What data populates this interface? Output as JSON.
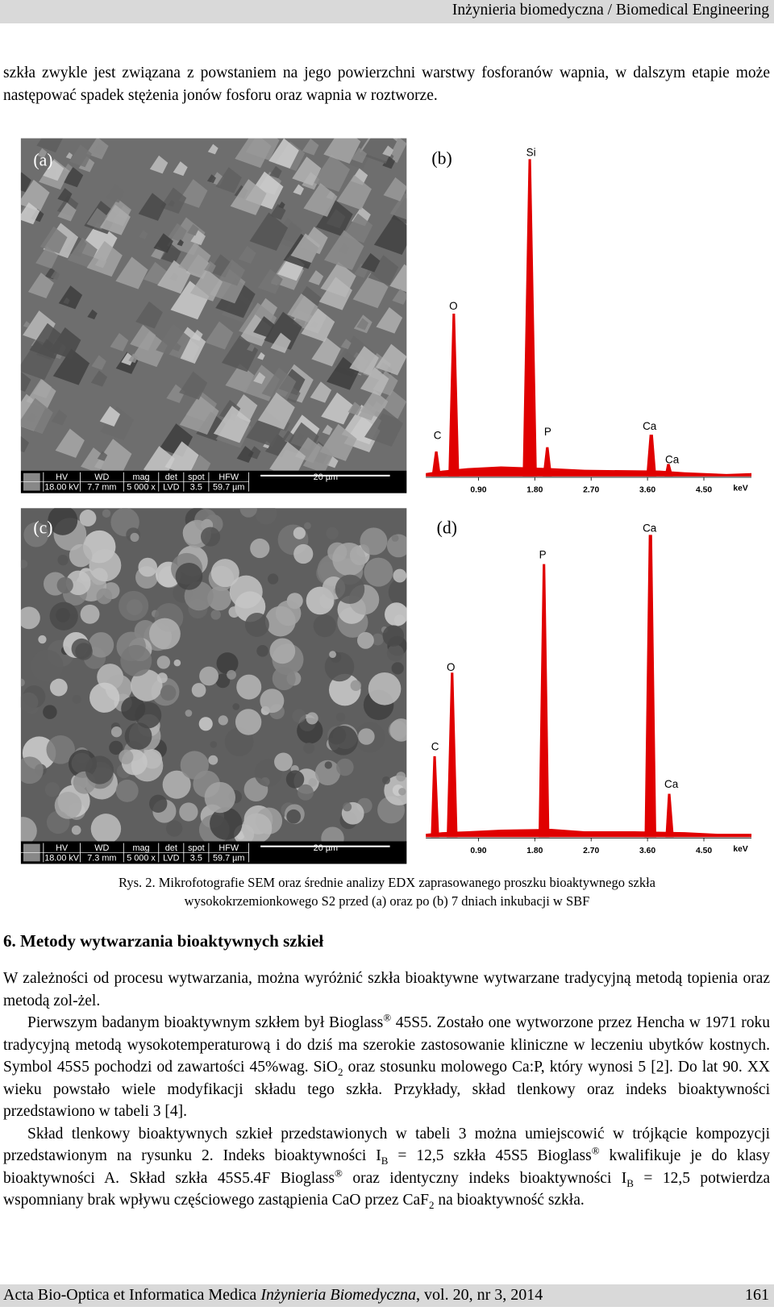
{
  "header": {
    "title": "Inżynieria biomedyczna / Biomedical Engineering"
  },
  "intro": "szkła zwykle jest związana z powstaniem na jego powierzchni warstwy fosforanów wapnia, w dalszym etapie może następować spadek stężenia jonów fosforu oraz wapnia w roztworze.",
  "figure": {
    "panels": [
      {
        "label": "(a)",
        "info": {
          "fields": [
            {
              "name": "HV",
              "value": "18.00 kV"
            },
            {
              "name": "WD",
              "value": "7.7 mm"
            },
            {
              "name": "mag",
              "value": "5 000 x"
            },
            {
              "name": "det",
              "value": "LVD"
            },
            {
              "name": "spot",
              "value": "3.5"
            },
            {
              "name": "HFW",
              "value": "59.7 µm"
            }
          ],
          "scale": "20 µm"
        }
      },
      {
        "label": "(b)",
        "peaks": [
          "Si",
          "O",
          "C",
          "P",
          "Ca",
          "Ca"
        ],
        "xticks": [
          "0.90",
          "1.80",
          "2.70",
          "3.60",
          "4.50"
        ],
        "unit": "keV"
      },
      {
        "label": "(c)",
        "info": {
          "fields": [
            {
              "name": "HV",
              "value": "18.00 kV"
            },
            {
              "name": "WD",
              "value": "7.3 mm"
            },
            {
              "name": "mag",
              "value": "5 000 x"
            },
            {
              "name": "det",
              "value": "LVD"
            },
            {
              "name": "spot",
              "value": "3.5"
            },
            {
              "name": "HFW",
              "value": "59.7 µm"
            }
          ],
          "scale": "20 µm"
        }
      },
      {
        "label": "(d)",
        "peaks": [
          "Ca",
          "P",
          "O",
          "C",
          "Ca"
        ],
        "xticks": [
          "0.90",
          "1.80",
          "2.70",
          "3.60",
          "4.50"
        ],
        "unit": "keV"
      }
    ],
    "caption": [
      "Rys. 2. Mikrofotografie SEM oraz średnie analizy EDX zaprasowanego proszku bioaktywnego szkła",
      "wysokokrzemionkowego S2 przed (a) oraz po (b) 7 dniach inkubacji w SBF"
    ]
  },
  "section": {
    "heading": "6. Metody wytwarzania bioaktywnych szkieł",
    "paragraphs": [
      [
        {
          "t": "W zależności od procesu wytwarzania, można wyróżnić szkła bioaktywne wytwarzane tradycyjną metodą topienia oraz metodą zol-żel."
        }
      ],
      [
        {
          "t": "Pierwszym badanym bioaktywnym szkłem był Bioglass"
        },
        {
          "sup": "®"
        },
        {
          "t": " 45S5. Zostało one wytworzone przez Hencha w 1971 roku tradycyjną metodą wysokotemperaturową i do dziś ma szerokie zastosowanie kliniczne w leczeniu ubytków kostnych. Symbol 45S5 pochodzi od zawartości 45%wag. SiO"
        },
        {
          "sub": "2"
        },
        {
          "t": " oraz stosunku molowego Ca:P, który wynosi 5 [2]. Do lat 90. XX wieku powstało wiele modyfikacji składu tego szkła. Przykłady, skład tlenkowy oraz indeks bioaktywności przedstawiono w tabeli 3 [4]."
        }
      ],
      [
        {
          "t": "Skład tlenkowy bioaktywnych szkieł przedstawionych w tabeli 3 można umiejscowić w trójkącie kompozycji przedstawionym na rysunku 2. Indeks bioaktywności I"
        },
        {
          "sub": "B"
        },
        {
          "t": " = 12,5 szkła 45S5 Bioglass"
        },
        {
          "sup": "®"
        },
        {
          "t": " kwalifikuje je do klasy bioaktywności A. Skład szkła 45S5.4F Bioglass"
        },
        {
          "sup": "®"
        },
        {
          "t": " oraz identyczny indeks bioaktywności I"
        },
        {
          "sub": "B"
        },
        {
          "t": " = 12,5 potwierdza wspomniany brak wpływu częściowego zastąpienia CaO przez CaF"
        },
        {
          "sub": "2"
        },
        {
          "t": " na bioaktywność szkła."
        }
      ]
    ]
  },
  "footer": {
    "journal": "Acta Bio-Optica et Informatica Medica",
    "journal_italic": "Inżynieria Biomedyczna",
    "volume": ", vol. 20, nr 3, 2014",
    "page": "161"
  }
}
